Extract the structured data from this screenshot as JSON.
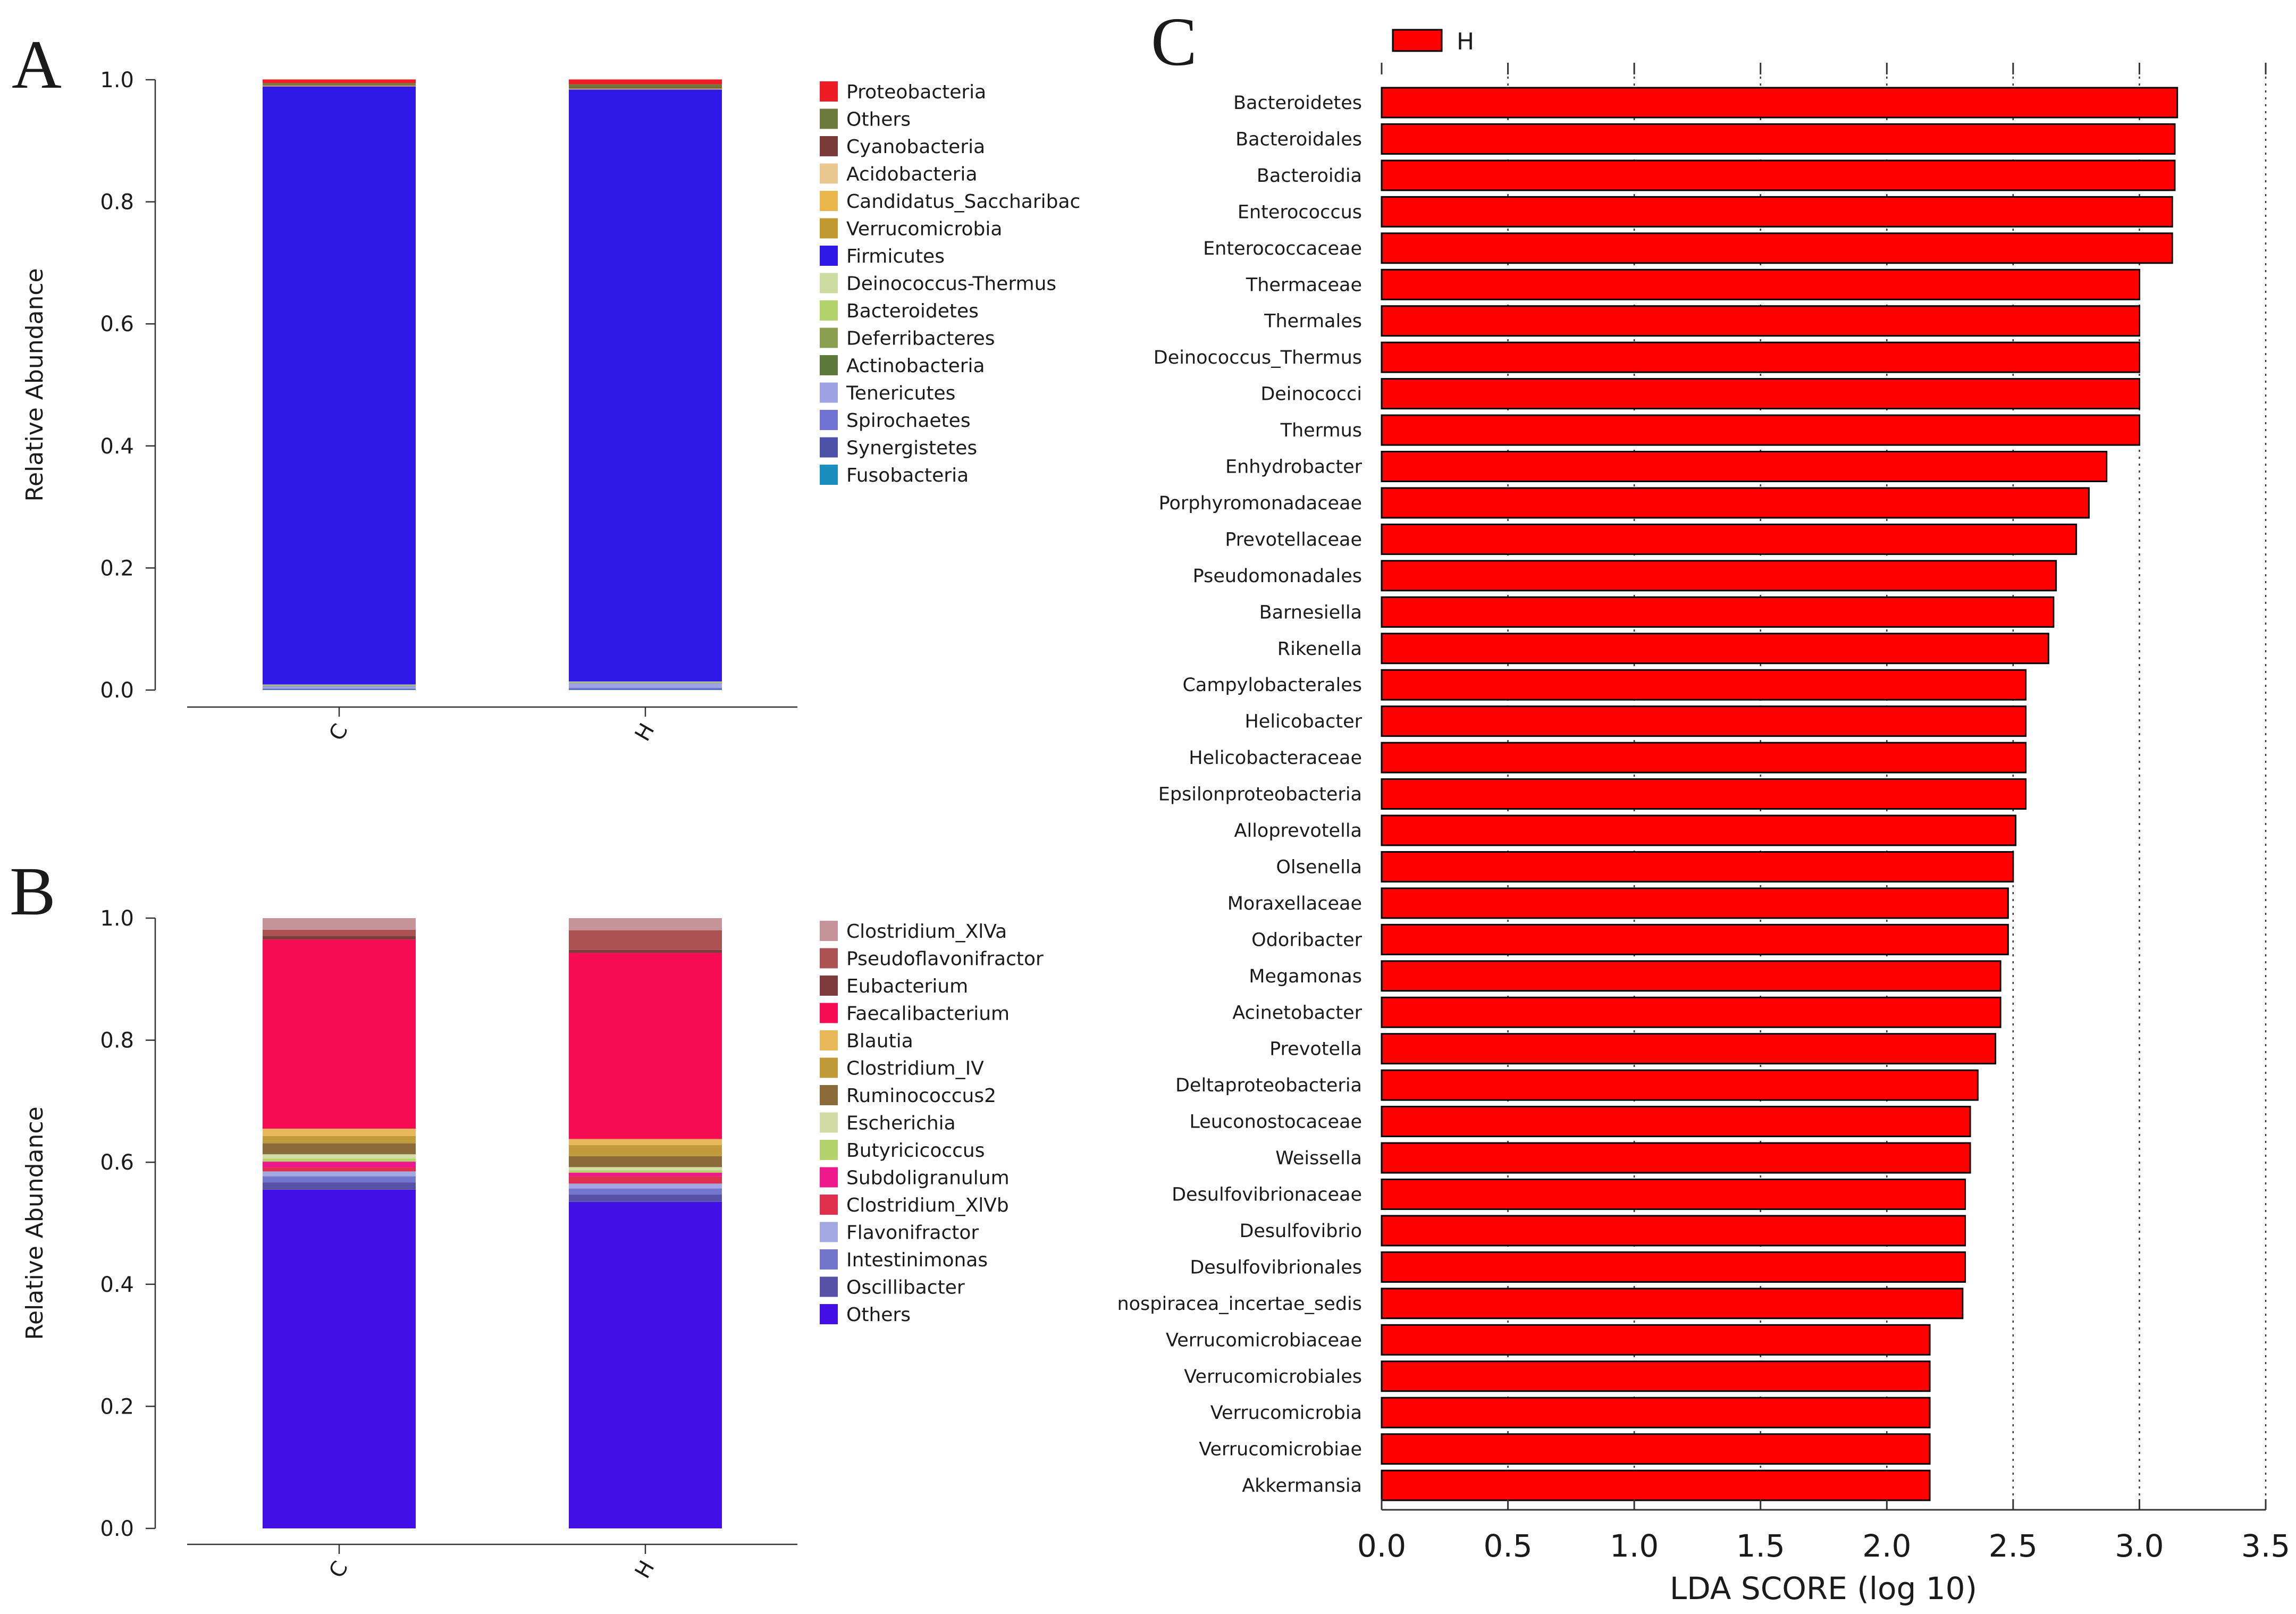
{
  "panel_letters": {
    "a": "A",
    "b": "B",
    "c": "C"
  },
  "chart_data": [
    {
      "panel": "A",
      "type": "bar",
      "stacked": true,
      "ylabel": "Relative Abundance",
      "ylim": [
        0,
        1.0
      ],
      "yticks": [
        "0.0",
        "0.2",
        "0.4",
        "0.6",
        "0.8",
        "1.0"
      ],
      "categories": [
        "C",
        "H"
      ],
      "series": [
        {
          "name": "Fusobacteria",
          "color": "#1a8fbf",
          "values": [
            0.0005,
            0.0005
          ]
        },
        {
          "name": "Synergistetes",
          "color": "#4b51a6",
          "values": [
            0.001,
            0.001
          ]
        },
        {
          "name": "Spirochaetes",
          "color": "#6f74d4",
          "values": [
            0.001,
            0.002
          ]
        },
        {
          "name": "Tenericutes",
          "color": "#9fa3e3",
          "values": [
            0.004,
            0.008
          ]
        },
        {
          "name": "Actinobacteria",
          "color": "#5e7a3a",
          "values": [
            0.0005,
            0.0005
          ]
        },
        {
          "name": "Deferribacteres",
          "color": "#8aa050",
          "values": [
            0.0005,
            0.0005
          ]
        },
        {
          "name": "Bacteroidetes",
          "color": "#b3d36b",
          "values": [
            0.001,
            0.001
          ]
        },
        {
          "name": "Deinococcus-Thermus",
          "color": "#cedba0",
          "values": [
            0.0005,
            0.0005
          ]
        },
        {
          "name": "Firmicutes",
          "color": "#3019e6",
          "values": [
            0.98,
            0.97
          ]
        },
        {
          "name": "Verrucomicrobia",
          "color": "#c1982f",
          "values": [
            0.0005,
            0.0005
          ]
        },
        {
          "name": "Candidatus_Saccharibac",
          "color": "#e8b64a",
          "values": [
            0.0005,
            0.0005
          ]
        },
        {
          "name": "Acidobacteria",
          "color": "#e8c890",
          "values": [
            0.0005,
            0.0005
          ]
        },
        {
          "name": "Cyanobacteria",
          "color": "#7b3b38",
          "values": [
            0.001,
            0.001
          ]
        },
        {
          "name": "Others",
          "color": "#6e7a3d",
          "values": [
            0.003,
            0.006
          ]
        },
        {
          "name": "Proteobacteria",
          "color": "#ee1c24",
          "values": [
            0.006,
            0.008
          ]
        }
      ],
      "legend_order": [
        "Proteobacteria",
        "Others",
        "Cyanobacteria",
        "Acidobacteria",
        "Candidatus_Saccharibac",
        "Verrucomicrobia",
        "Firmicutes",
        "Deinococcus-Thermus",
        "Bacteroidetes",
        "Deferribacteres",
        "Actinobacteria",
        "Tenericutes",
        "Spirochaetes",
        "Synergistetes",
        "Fusobacteria"
      ],
      "legend": "right"
    },
    {
      "panel": "B",
      "type": "bar",
      "stacked": true,
      "ylabel": "Relative Abundance",
      "ylim": [
        0,
        1.0
      ],
      "yticks": [
        "0.0",
        "0.2",
        "0.4",
        "0.6",
        "0.8",
        "1.0"
      ],
      "categories": [
        "C",
        "H"
      ],
      "series": [
        {
          "name": "Others",
          "color": "#4210e6",
          "values": [
            0.555,
            0.535
          ]
        },
        {
          "name": "Oscillibacter",
          "color": "#5751a8",
          "values": [
            0.012,
            0.012
          ]
        },
        {
          "name": "Intestinimonas",
          "color": "#7276cc",
          "values": [
            0.01,
            0.01
          ]
        },
        {
          "name": "Flavonifractor",
          "color": "#a4a8e2",
          "values": [
            0.008,
            0.008
          ]
        },
        {
          "name": "Clostridium_XlVb",
          "color": "#e02f4d",
          "values": [
            0.006,
            0.012
          ]
        },
        {
          "name": "Subdoligranulum",
          "color": "#ee1a8c",
          "values": [
            0.01,
            0.006
          ]
        },
        {
          "name": "Butyricicoccus",
          "color": "#b5d36d",
          "values": [
            0.005,
            0.004
          ]
        },
        {
          "name": "Escherichia",
          "color": "#d3dca5",
          "values": [
            0.007,
            0.005
          ]
        },
        {
          "name": "Ruminococcus2",
          "color": "#8a6a38",
          "values": [
            0.018,
            0.018
          ]
        },
        {
          "name": "Clostridium_IV",
          "color": "#c19a39",
          "values": [
            0.012,
            0.018
          ]
        },
        {
          "name": "Blautia",
          "color": "#e8b75a",
          "values": [
            0.012,
            0.01
          ]
        },
        {
          "name": "Faecalibacterium",
          "color": "#f60c53",
          "values": [
            0.31,
            0.305
          ]
        },
        {
          "name": "Eubacterium",
          "color": "#7d3b3b",
          "values": [
            0.006,
            0.005
          ]
        },
        {
          "name": "Pseudoflavonifractor",
          "color": "#ad5252",
          "values": [
            0.01,
            0.032
          ]
        },
        {
          "name": "Clostridium_XlVa",
          "color": "#c4949a",
          "values": [
            0.019,
            0.02
          ]
        }
      ],
      "legend_order": [
        "Clostridium_XlVa",
        "Pseudoflavonifractor",
        "Eubacterium",
        "Faecalibacterium",
        "Blautia",
        "Clostridium_IV",
        "Ruminococcus2",
        "Escherichia",
        "Butyricicoccus",
        "Subdoligranulum",
        "Clostridium_XlVb",
        "Flavonifractor",
        "Intestinimonas",
        "Oscillibacter",
        "Others"
      ],
      "legend": "right"
    },
    {
      "panel": "C",
      "type": "bar",
      "orientation": "horizontal",
      "xlabel": "LDA SCORE (log 10)",
      "xlim": [
        0,
        3.5
      ],
      "xticks": [
        "0.0",
        "0.5",
        "1.0",
        "1.5",
        "2.0",
        "2.5",
        "3.0",
        "3.5"
      ],
      "grid": "dotted vertical lines",
      "legend": "top-left",
      "series_name": "H",
      "color": "#ff0000",
      "categories": [
        "Bacteroidetes",
        "Bacteroidales",
        "Bacteroidia",
        "Enterococcus",
        "Enterococcaceae",
        "Thermaceae",
        "Thermales",
        "Deinococcus_Thermus",
        "Deinococci",
        "Thermus",
        "Enhydrobacter",
        "Porphyromonadaceae",
        "Prevotellaceae",
        "Pseudomonadales",
        "Barnesiella",
        "Rikenella",
        "Campylobacterales",
        "Helicobacter",
        "Helicobacteraceae",
        "Epsilonproteobacteria",
        "Alloprevotella",
        "Olsenella",
        "Moraxellaceae",
        "Odoribacter",
        "Megamonas",
        "Acinetobacter",
        "Prevotella",
        "Deltaproteobacteria",
        "Leuconostocaceae",
        "Weissella",
        "Desulfovibrionaceae",
        "Desulfovibrio",
        "Desulfovibrionales",
        "nospiracea_incertae_sedis",
        "Verrucomicrobiaceae",
        "Verrucomicrobiales",
        "Verrucomicrobia",
        "Verrucomicrobiae",
        "Akkermansia"
      ],
      "values": [
        3.15,
        3.14,
        3.14,
        3.13,
        3.13,
        3.0,
        3.0,
        3.0,
        3.0,
        3.0,
        2.87,
        2.8,
        2.75,
        2.67,
        2.66,
        2.64,
        2.55,
        2.55,
        2.55,
        2.55,
        2.51,
        2.5,
        2.48,
        2.48,
        2.45,
        2.45,
        2.43,
        2.36,
        2.33,
        2.33,
        2.31,
        2.31,
        2.31,
        2.3,
        2.17,
        2.17,
        2.17,
        2.17,
        2.17
      ]
    }
  ]
}
